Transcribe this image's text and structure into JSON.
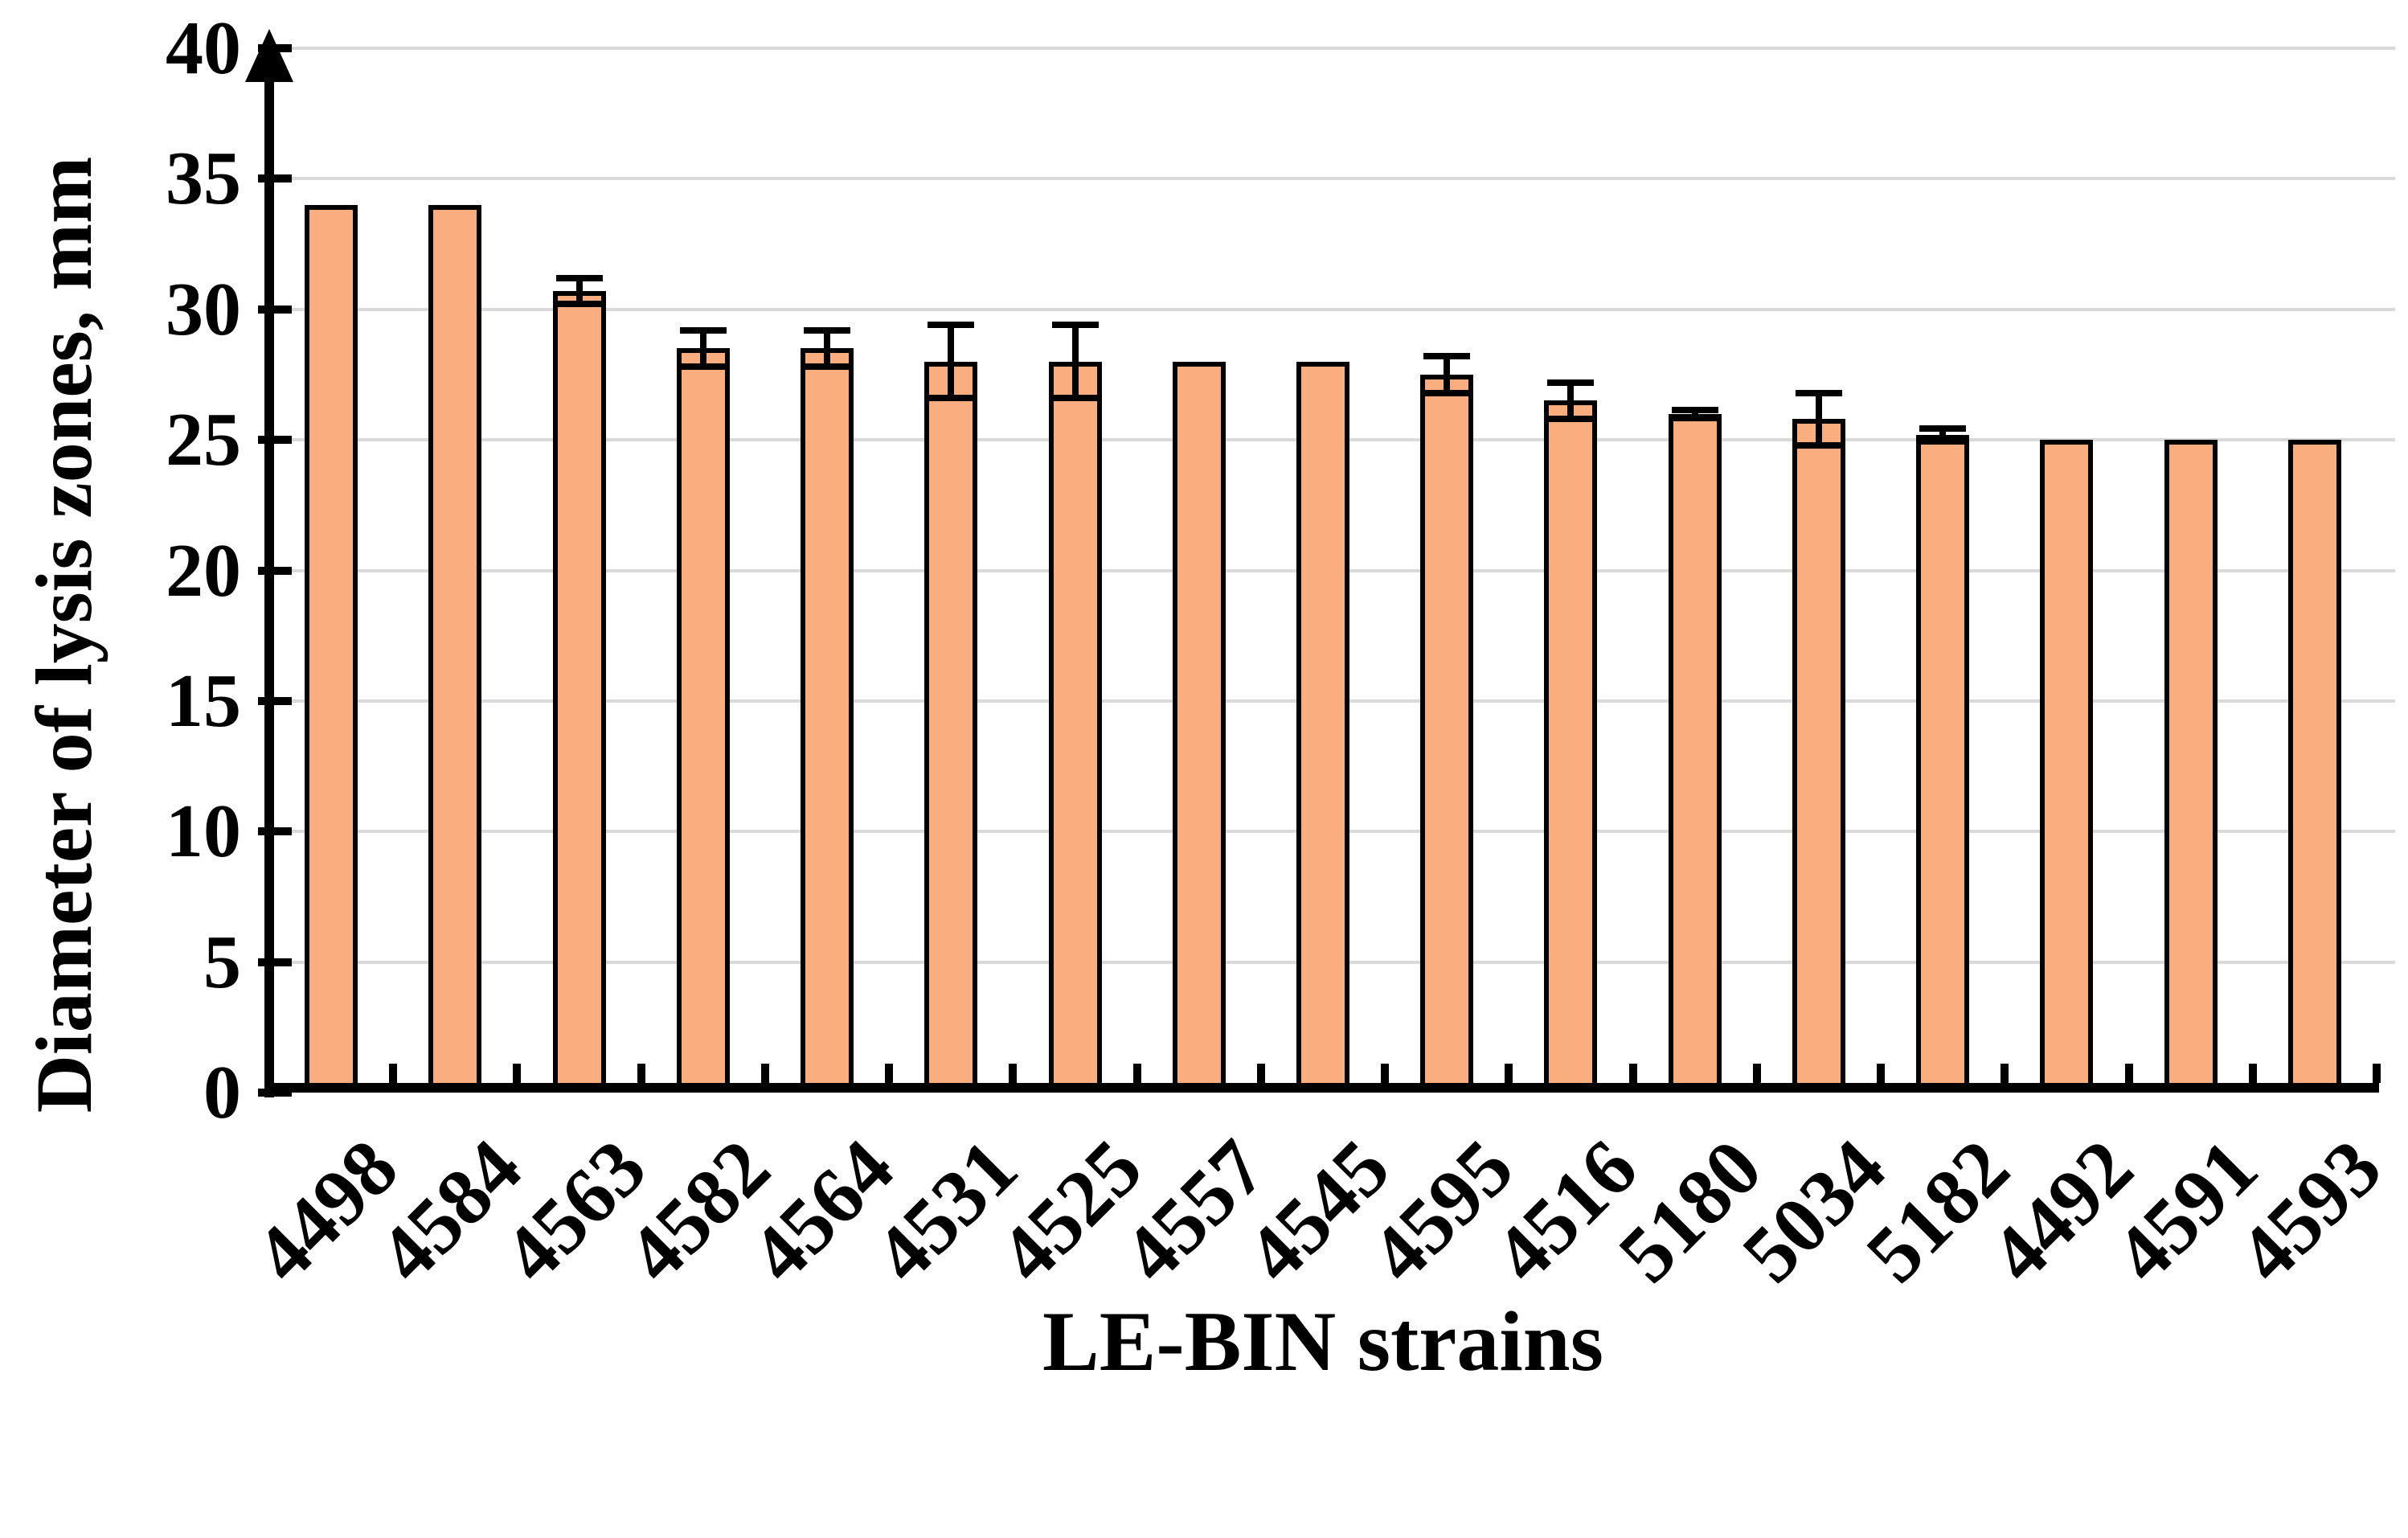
{
  "chart_data": {
    "type": "bar",
    "title": "",
    "xlabel": "LE-BIN strains",
    "ylabel": "Diameter of lysis zones, mm",
    "categories": [
      "4498",
      "4584",
      "4563",
      "4582",
      "4564",
      "4531",
      "4525",
      "4557",
      "4545",
      "4595",
      "4516",
      "5180",
      "5034",
      "5182",
      "4492",
      "4591",
      "4593"
    ],
    "values": [
      34,
      34,
      30.7,
      28.5,
      28.5,
      28,
      28,
      28,
      28,
      27.5,
      26.5,
      26,
      25.8,
      25.2,
      25,
      25,
      25
    ],
    "error_bars": [
      0,
      0,
      0.5,
      0.7,
      0.7,
      1.4,
      1.4,
      0,
      0,
      0.7,
      0.7,
      0.15,
      1.0,
      0.25,
      0,
      0,
      0
    ],
    "ylim": [
      0,
      40
    ],
    "yticks": [
      0,
      5,
      10,
      15,
      20,
      25,
      30,
      35,
      40
    ],
    "grid": true,
    "legend_position": "none",
    "bar_color": "#FAAD7E",
    "bar_border_color": "#000000",
    "grid_color": "#D9D9D9",
    "axis_color": "#000000"
  }
}
